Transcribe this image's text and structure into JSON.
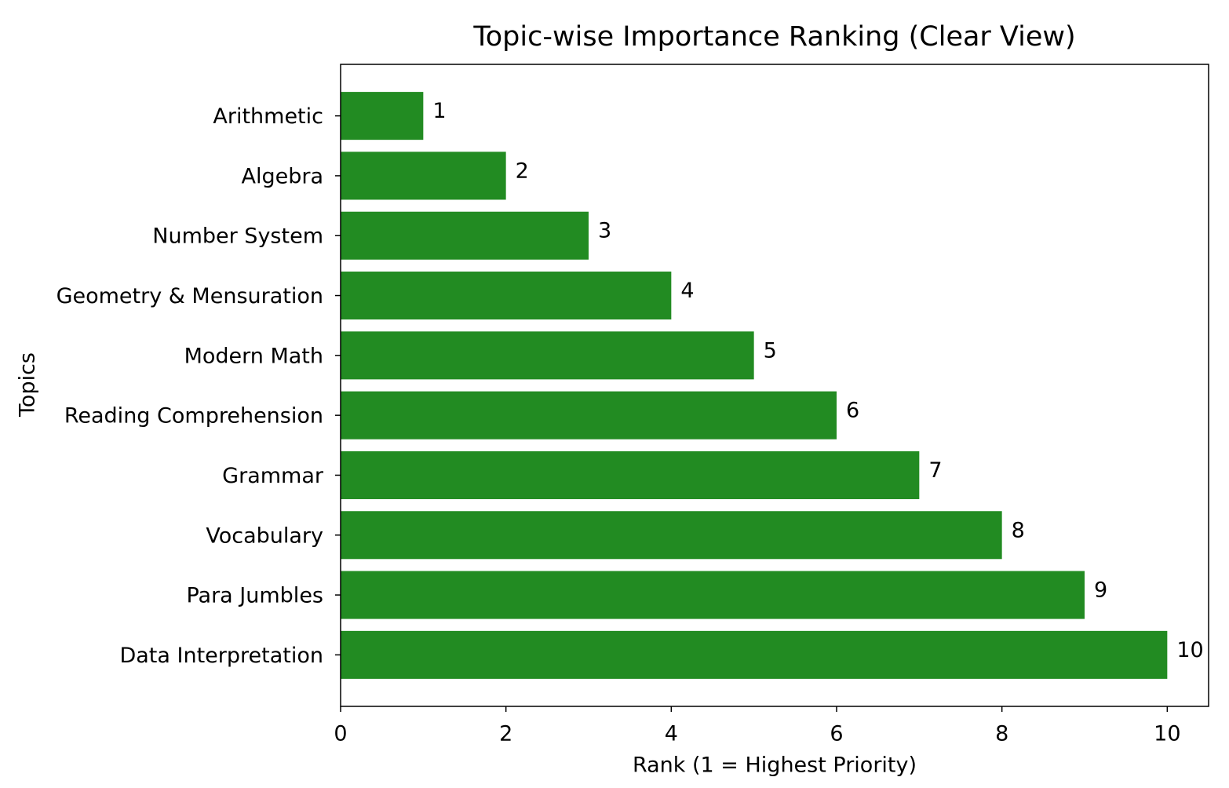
{
  "chart_data": {
    "type": "barh",
    "title": "Topic-wise Importance Ranking (Clear View)",
    "xlabel": "Rank (1 = Highest Priority)",
    "ylabel": "Topics",
    "categories": [
      "Arithmetic",
      "Algebra",
      "Number System",
      "Geometry & Mensuration",
      "Modern Math",
      "Reading Comprehension",
      "Grammar",
      "Vocabulary",
      "Para Jumbles",
      "Data Interpretation"
    ],
    "values": [
      1,
      2,
      3,
      4,
      5,
      6,
      7,
      8,
      9,
      10
    ],
    "color": "#228b22",
    "xlim": [
      0,
      10.5
    ],
    "xticks": [
      0,
      2,
      4,
      6,
      8,
      10
    ],
    "grid": false
  }
}
